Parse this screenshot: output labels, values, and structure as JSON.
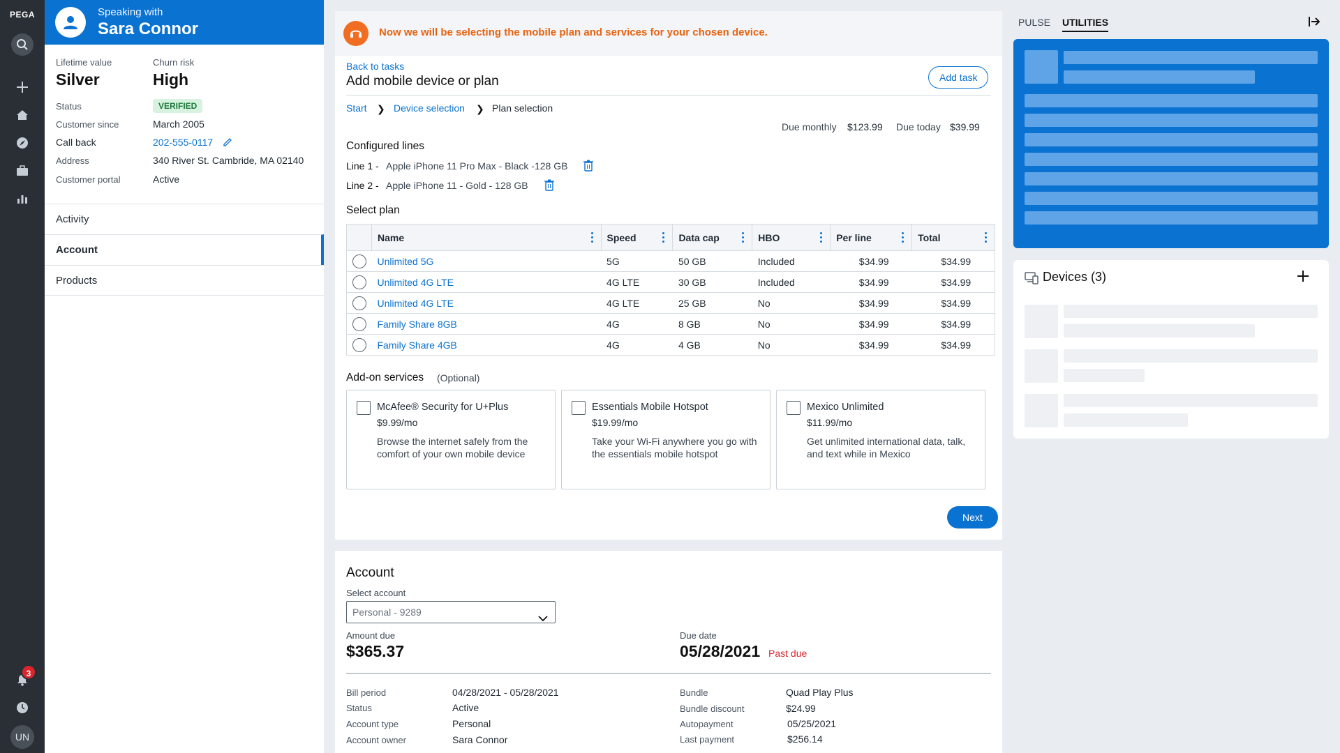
{
  "app": {
    "brand": "PEGA",
    "notifications": "3",
    "user_initials": "UN"
  },
  "customer": {
    "speaking_with": "Speaking with",
    "name": "Sara Connor",
    "lifetime_value_label": "Lifetime value",
    "lifetime_value": "Silver",
    "churn_risk_label": "Churn risk",
    "churn_risk": "High",
    "fields": [
      {
        "label": "Status",
        "value": "VERIFIED"
      },
      {
        "label": "Customer since",
        "value": "March 2005"
      },
      {
        "label": "Call back",
        "value": "202-555-0117"
      },
      {
        "label": "Address",
        "value": "340 River St. Cambride, MA 02140"
      },
      {
        "label": "Customer portal",
        "value": "Active"
      }
    ],
    "menu": [
      "Activity",
      "Account",
      "Products"
    ]
  },
  "banner": "Now we will be selecting the mobile plan and services for your chosen device.",
  "task": {
    "back": "Back to tasks",
    "title": "Add mobile device or plan",
    "add_task": "Add task",
    "breadcrumb": [
      "Start",
      "Device selection",
      "Plan selection"
    ],
    "due_monthly_label": "Due monthly",
    "due_monthly": "$123.99",
    "due_today_label": "Due today",
    "due_today": "$39.99",
    "configured_lines_label": "Configured lines",
    "lines": [
      {
        "label": "Line 1 -",
        "device": "Apple iPhone 11 Pro Max - Black -128 GB"
      },
      {
        "label": "Line 2 -",
        "device": "Apple iPhone 11 - Gold - 128 GB"
      }
    ],
    "select_plan_label": "Select plan",
    "columns": [
      "Name",
      "Speed",
      "Data cap",
      "HBO",
      "Per line",
      "Total"
    ],
    "plans": [
      {
        "name": "Unlimited 5G",
        "speed": "5G",
        "data": "50 GB",
        "hbo": "Included",
        "per_line": "$34.99",
        "total": "$34.99"
      },
      {
        "name": "Unlimited 4G LTE",
        "speed": "4G LTE",
        "data": "30 GB",
        "hbo": "Included",
        "per_line": "$34.99",
        "total": "$34.99"
      },
      {
        "name": "Unlimited 4G LTE",
        "speed": "4G LTE",
        "data": "25 GB",
        "hbo": "No",
        "per_line": "$34.99",
        "total": "$34.99"
      },
      {
        "name": "Family Share 8GB",
        "speed": "4G",
        "data": "8 GB",
        "hbo": "No",
        "per_line": "$34.99",
        "total": "$34.99"
      },
      {
        "name": "Family Share 4GB",
        "speed": "4G",
        "data": "4 GB",
        "hbo": "No",
        "per_line": "$34.99",
        "total": "$34.99"
      }
    ],
    "addons_label": "Add-on services",
    "addons_optional": "(Optional)",
    "addons": [
      {
        "title": "McAfee® Security for U+Plus",
        "price": "$9.99/mo",
        "desc": "Browse the internet safely from the comfort of your own mobile device"
      },
      {
        "title": "Essentials Mobile Hotspot",
        "price": "$19.99/mo",
        "desc": "Take your Wi-Fi anywhere you go with the essentials mobile hotspot"
      },
      {
        "title": "Mexico Unlimited",
        "price": "$11.99/mo",
        "desc": "Get unlimited international data, talk, and text while in Mexico"
      }
    ],
    "next": "Next"
  },
  "account": {
    "title": "Account",
    "select_label": "Select account",
    "select_value": "Personal - 9289",
    "amount_due_label": "Amount due",
    "amount_due": "$365.37",
    "due_date_label": "Due date",
    "due_date": "05/28/2021",
    "past_due": "Past due",
    "left": [
      {
        "label": "Bill period",
        "value": "04/28/2021 - 05/28/2021"
      },
      {
        "label": "Status",
        "value": "Active"
      },
      {
        "label": "Account type",
        "value": "Personal"
      },
      {
        "label": "Account owner",
        "value": "Sara Connor"
      }
    ],
    "right": [
      {
        "label": "Bundle",
        "value": "Quad Play Plus"
      },
      {
        "label": "Bundle discount",
        "value": "$24.99"
      },
      {
        "label": "Autopayment",
        "value": "05/25/2021"
      },
      {
        "label": "Last payment",
        "value": "$256.14"
      }
    ]
  },
  "utilities": {
    "tabs": [
      "PULSE",
      "UTILITIES"
    ],
    "devices_title": "Devices (3)"
  }
}
